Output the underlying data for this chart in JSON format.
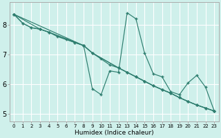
{
  "xlabel": "Humidex (Indice chaleur)",
  "background_color": "#cff0eb",
  "grid_color": "#ffffff",
  "line_color": "#2d7d6e",
  "marker_color": "#2d7d6e",
  "xlim": [
    -0.5,
    23.5
  ],
  "ylim": [
    4.75,
    8.75
  ],
  "yticks": [
    5,
    6,
    7,
    8
  ],
  "xtick_labels": [
    "0",
    "1",
    "2",
    "3",
    "4",
    "5",
    "6",
    "7",
    "8",
    "9",
    "10",
    "11",
    "12",
    "13",
    "14",
    "15",
    "16",
    "17",
    "18",
    "19",
    "20",
    "21",
    "22",
    "23"
  ],
  "series": [
    {
      "x": [
        0,
        1,
        2,
        3,
        4,
        5,
        6,
        7,
        8,
        9,
        10,
        11,
        12,
        13,
        14,
        15,
        16,
        17,
        18,
        19,
        20,
        21,
        22,
        23
      ],
      "y": [
        8.35,
        8.05,
        7.9,
        7.85,
        7.75,
        7.6,
        7.5,
        7.4,
        7.3,
        5.85,
        5.65,
        6.45,
        6.4,
        8.4,
        8.2,
        7.05,
        6.35,
        6.25,
        5.75,
        5.65,
        6.05,
        6.3,
        5.9,
        5.1
      ]
    },
    {
      "x": [
        0,
        1,
        2,
        3,
        4,
        7,
        8,
        9,
        10,
        11,
        12,
        13,
        14,
        15,
        16,
        17,
        18,
        19,
        20,
        21,
        22,
        23
      ],
      "y": [
        8.35,
        8.05,
        7.9,
        7.85,
        7.75,
        7.4,
        7.3,
        7.05,
        6.85,
        6.65,
        6.55,
        6.4,
        6.25,
        6.1,
        5.95,
        5.82,
        5.7,
        5.55,
        5.42,
        5.3,
        5.2,
        5.1
      ]
    },
    {
      "x": [
        0,
        3,
        4,
        8,
        9,
        12,
        13,
        14,
        15,
        16,
        17,
        18,
        19,
        20,
        21,
        22,
        23
      ],
      "y": [
        8.35,
        7.85,
        7.75,
        7.3,
        7.05,
        6.55,
        6.4,
        6.25,
        6.1,
        5.95,
        5.82,
        5.7,
        5.55,
        5.42,
        5.3,
        5.2,
        5.1
      ]
    },
    {
      "x": [
        0,
        8,
        9,
        12,
        13,
        14,
        15,
        16,
        17,
        18,
        19,
        20,
        21,
        22,
        23
      ],
      "y": [
        8.35,
        7.3,
        7.05,
        6.55,
        6.4,
        6.25,
        6.1,
        5.95,
        5.82,
        5.7,
        5.55,
        5.42,
        5.3,
        5.2,
        5.1
      ]
    }
  ]
}
